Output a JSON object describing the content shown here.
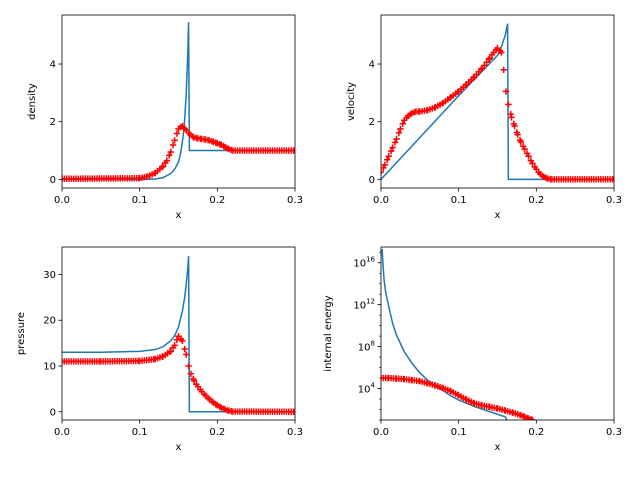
{
  "colors": {
    "line": "#1f77b4",
    "marker": "#ff0000",
    "axes": "#000000",
    "background": "#ffffff"
  },
  "chart_data": [
    {
      "type": "line",
      "xlabel": "x",
      "ylabel": "density",
      "xlim": [
        0,
        0.3
      ],
      "ylim": [
        -0.3,
        5.7
      ],
      "yscale": "linear",
      "xticks": [
        0,
        0.1,
        0.2,
        0.3
      ],
      "xtick_labels": [
        "0.0",
        "0.1",
        "0.2",
        "0.3"
      ],
      "yticks": [
        0,
        2,
        4
      ],
      "ytick_labels": [
        "0",
        "2",
        "4"
      ],
      "grid": false,
      "series": [
        {
          "kind": "line",
          "x": [
            0,
            0.05,
            0.1,
            0.12,
            0.13,
            0.14,
            0.145,
            0.15,
            0.153,
            0.156,
            0.158,
            0.16,
            0.161,
            0.162,
            0.1625,
            0.163,
            0.164,
            0.2,
            0.3
          ],
          "y": [
            0,
            0,
            0,
            0.01,
            0.06,
            0.2,
            0.35,
            0.6,
            0.95,
            1.5,
            2.1,
            3.0,
            3.7,
            4.4,
            5.0,
            5.45,
            1.0,
            1.0,
            1.0
          ]
        },
        {
          "kind": "scatter",
          "x": [
            0,
            0.1,
            0.11,
            0.12,
            0.13,
            0.135,
            0.14,
            0.145,
            0.15,
            0.155,
            0.16,
            0.165,
            0.17,
            0.175,
            0.18,
            0.185,
            0.19,
            0.195,
            0.2,
            0.205,
            0.21,
            0.215,
            0.22,
            0.3
          ],
          "y": [
            0.02,
            0.04,
            0.1,
            0.22,
            0.45,
            0.65,
            0.95,
            1.35,
            1.75,
            1.85,
            1.7,
            1.55,
            1.45,
            1.42,
            1.4,
            1.38,
            1.35,
            1.3,
            1.25,
            1.2,
            1.12,
            1.05,
            1.0,
            1.0
          ]
        }
      ]
    },
    {
      "type": "line",
      "xlabel": "x",
      "ylabel": "velocity",
      "xlim": [
        0,
        0.3
      ],
      "ylim": [
        -0.3,
        5.7
      ],
      "yscale": "linear",
      "xticks": [
        0,
        0.1,
        0.2,
        0.3
      ],
      "xtick_labels": [
        "0.0",
        "0.1",
        "0.2",
        "0.3"
      ],
      "yticks": [
        0,
        2,
        4
      ],
      "ytick_labels": [
        "0",
        "2",
        "4"
      ],
      "grid": false,
      "series": [
        {
          "kind": "line",
          "x": [
            0,
            0.1,
            0.15,
            0.155,
            0.16,
            0.163,
            0.164,
            0.3
          ],
          "y": [
            0,
            2.9,
            4.3,
            4.6,
            5.0,
            5.4,
            0,
            0
          ]
        },
        {
          "kind": "scatter",
          "x": [
            0,
            0.005,
            0.01,
            0.015,
            0.02,
            0.025,
            0.03,
            0.035,
            0.04,
            0.045,
            0.05,
            0.06,
            0.07,
            0.08,
            0.09,
            0.1,
            0.11,
            0.12,
            0.13,
            0.14,
            0.145,
            0.15,
            0.155,
            0.158,
            0.161,
            0.164,
            0.168,
            0.172,
            0.176,
            0.18,
            0.185,
            0.19,
            0.195,
            0.2,
            0.205,
            0.21,
            0.215,
            0.22,
            0.3
          ],
          "y": [
            0.25,
            0.5,
            0.8,
            1.1,
            1.4,
            1.75,
            2.05,
            2.2,
            2.3,
            2.35,
            2.35,
            2.4,
            2.5,
            2.65,
            2.85,
            3.05,
            3.3,
            3.55,
            3.85,
            4.2,
            4.4,
            4.55,
            4.4,
            3.8,
            3.05,
            2.6,
            2.15,
            1.85,
            1.55,
            1.3,
            1.05,
            0.8,
            0.55,
            0.35,
            0.18,
            0.08,
            0.02,
            0.0,
            0.0
          ]
        }
      ]
    },
    {
      "type": "line",
      "xlabel": "x",
      "ylabel": "pressure",
      "xlim": [
        0,
        0.3
      ],
      "ylim": [
        -1.8,
        36
      ],
      "yscale": "linear",
      "xticks": [
        0,
        0.1,
        0.2,
        0.3
      ],
      "xtick_labels": [
        "0.0",
        "0.1",
        "0.2",
        "0.3"
      ],
      "yticks": [
        0,
        10,
        20,
        30
      ],
      "ytick_labels": [
        "0",
        "10",
        "20",
        "30"
      ],
      "grid": false,
      "series": [
        {
          "kind": "line",
          "x": [
            0,
            0.05,
            0.1,
            0.12,
            0.13,
            0.14,
            0.145,
            0.15,
            0.155,
            0.158,
            0.16,
            0.162,
            0.163,
            0.164,
            0.3
          ],
          "y": [
            13,
            13,
            13.2,
            13.6,
            14.2,
            15.5,
            16.6,
            18.5,
            22,
            25,
            28,
            31.5,
            34,
            0,
            0
          ]
        },
        {
          "kind": "scatter",
          "x": [
            0,
            0.05,
            0.1,
            0.12,
            0.13,
            0.14,
            0.145,
            0.15,
            0.155,
            0.16,
            0.163,
            0.166,
            0.17,
            0.175,
            0.18,
            0.185,
            0.19,
            0.195,
            0.2,
            0.205,
            0.21,
            0.215,
            0.22,
            0.3
          ],
          "y": [
            11,
            11,
            11.1,
            11.5,
            12.1,
            13.2,
            14.5,
            16.5,
            15.5,
            12.5,
            10,
            8.3,
            6.8,
            5.5,
            4.4,
            3.5,
            2.7,
            2.0,
            1.4,
            0.9,
            0.5,
            0.2,
            0.05,
            0.0
          ]
        }
      ]
    },
    {
      "type": "line",
      "xlabel": "x",
      "ylabel": "internal energy",
      "xlim": [
        0,
        0.3
      ],
      "ylim_log10": [
        1,
        17.5
      ],
      "yscale": "log",
      "xticks": [
        0,
        0.1,
        0.2,
        0.3
      ],
      "xtick_labels": [
        "0.0",
        "0.1",
        "0.2",
        "0.3"
      ],
      "yticks_log10": [
        4,
        8,
        12,
        16
      ],
      "ytick_base": "10",
      "ytick_exponents": [
        "4",
        "8",
        "12",
        "16"
      ],
      "grid": false,
      "series": [
        {
          "kind": "line",
          "x": [
            0.0015,
            0.002,
            0.004,
            0.006,
            0.01,
            0.015,
            0.02,
            0.03,
            0.04,
            0.05,
            0.06,
            0.07,
            0.08,
            0.09,
            0.1,
            0.11,
            0.12,
            0.13,
            0.14,
            0.15,
            0.16,
            0.162
          ],
          "log10_y": [
            17.3,
            16.5,
            14.3,
            13.2,
            11.8,
            10.2,
            9.1,
            7.5,
            6.4,
            5.5,
            4.8,
            4.2,
            3.8,
            3.3,
            2.9,
            2.6,
            2.3,
            2.05,
            1.8,
            1.55,
            1.3,
            1.0
          ]
        },
        {
          "kind": "scatter",
          "x": [
            0,
            0.01,
            0.02,
            0.03,
            0.04,
            0.05,
            0.06,
            0.07,
            0.08,
            0.09,
            0.1,
            0.11,
            0.12,
            0.13,
            0.14,
            0.15,
            0.16,
            0.17,
            0.18,
            0.185,
            0.19,
            0.195
          ],
          "log10_y": [
            5.0,
            5.0,
            4.95,
            4.9,
            4.8,
            4.7,
            4.5,
            4.3,
            4.05,
            3.75,
            3.35,
            2.95,
            2.6,
            2.4,
            2.25,
            2.1,
            1.9,
            1.7,
            1.45,
            1.3,
            1.15,
            1.0
          ]
        }
      ]
    }
  ]
}
